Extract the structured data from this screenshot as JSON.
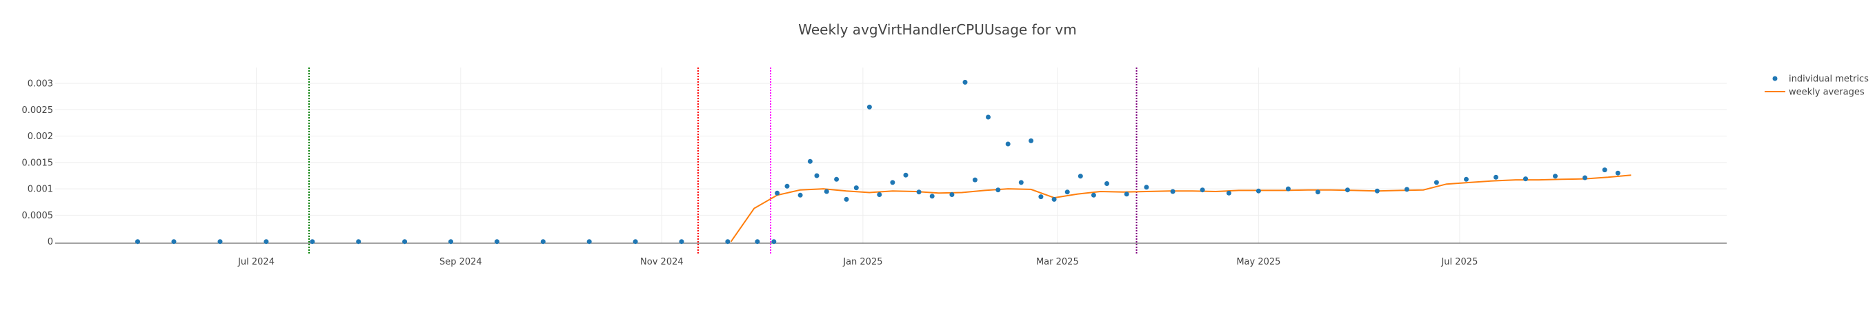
{
  "chart_data": {
    "type": "scatter",
    "title": "Weekly avgVirtHandlerCPUUsage for vm",
    "xlabel": "",
    "ylabel": "",
    "x_axis": {
      "type": "date",
      "range": [
        "2024-05-01",
        "2025-09-20"
      ],
      "ticks": [
        {
          "date": "2024-07-01",
          "label": "Jul 2024"
        },
        {
          "date": "2024-09-01",
          "label": "Sep 2024"
        },
        {
          "date": "2024-11-01",
          "label": "Nov 2024"
        },
        {
          "date": "2025-01-01",
          "label": "Jan 2025"
        },
        {
          "date": "2025-03-01",
          "label": "Mar 2025"
        },
        {
          "date": "2025-05-01",
          "label": "May 2025"
        },
        {
          "date": "2025-07-01",
          "label": "Jul 2025"
        }
      ]
    },
    "y_axis": {
      "range": [
        -3e-05,
        0.0033
      ],
      "ticks": [
        {
          "value": 0,
          "label": "0"
        },
        {
          "value": 0.0005,
          "label": "0.0005"
        },
        {
          "value": 0.001,
          "label": "0.001"
        },
        {
          "value": 0.0015,
          "label": "0.0015"
        },
        {
          "value": 0.002,
          "label": "0.002"
        },
        {
          "value": 0.0025,
          "label": "0.0025"
        },
        {
          "value": 0.003,
          "label": "0.003"
        }
      ]
    },
    "grid": true,
    "legend_placement": "top-right",
    "vertical_markers": [
      {
        "date": "2024-07-17",
        "color": "#008000",
        "style": "dotted"
      },
      {
        "date": "2024-11-12",
        "color": "#ff0000",
        "style": "dotted"
      },
      {
        "date": "2024-12-04",
        "color": "#ff00ff",
        "style": "dotted"
      },
      {
        "date": "2025-03-25",
        "color": "#800080",
        "style": "dotted"
      }
    ],
    "series": [
      {
        "name": "individual metrics",
        "kind": "markers",
        "color": "#1f77b4",
        "points": [
          {
            "x": "2024-05-26",
            "y": 0.0
          },
          {
            "x": "2024-06-06",
            "y": 0.0
          },
          {
            "x": "2024-06-20",
            "y": 0.0
          },
          {
            "x": "2024-07-04",
            "y": 0.0
          },
          {
            "x": "2024-07-18",
            "y": 0.0
          },
          {
            "x": "2024-08-01",
            "y": 0.0
          },
          {
            "x": "2024-08-15",
            "y": 0.0
          },
          {
            "x": "2024-08-29",
            "y": 0.0
          },
          {
            "x": "2024-09-12",
            "y": 0.0
          },
          {
            "x": "2024-09-26",
            "y": 0.0
          },
          {
            "x": "2024-10-10",
            "y": 0.0
          },
          {
            "x": "2024-10-24",
            "y": 0.0
          },
          {
            "x": "2024-11-07",
            "y": 0.0
          },
          {
            "x": "2024-11-21",
            "y": 0.0
          },
          {
            "x": "2024-11-30",
            "y": 0.0
          },
          {
            "x": "2024-12-05",
            "y": 0.0
          },
          {
            "x": "2024-12-06",
            "y": 0.00092
          },
          {
            "x": "2024-12-09",
            "y": 0.00105
          },
          {
            "x": "2024-12-13",
            "y": 0.00088
          },
          {
            "x": "2024-12-16",
            "y": 0.00152
          },
          {
            "x": "2024-12-18",
            "y": 0.00125
          },
          {
            "x": "2024-12-21",
            "y": 0.00095
          },
          {
            "x": "2024-12-24",
            "y": 0.00118
          },
          {
            "x": "2024-12-27",
            "y": 0.0008
          },
          {
            "x": "2024-12-30",
            "y": 0.00102
          },
          {
            "x": "2025-01-03",
            "y": 0.00255
          },
          {
            "x": "2025-01-06",
            "y": 0.00089
          },
          {
            "x": "2025-01-10",
            "y": 0.00112
          },
          {
            "x": "2025-01-14",
            "y": 0.00126
          },
          {
            "x": "2025-01-18",
            "y": 0.00094
          },
          {
            "x": "2025-01-22",
            "y": 0.00086
          },
          {
            "x": "2025-01-28",
            "y": 0.00089
          },
          {
            "x": "2025-02-01",
            "y": 0.00302
          },
          {
            "x": "2025-02-04",
            "y": 0.00117
          },
          {
            "x": "2025-02-08",
            "y": 0.00236
          },
          {
            "x": "2025-02-11",
            "y": 0.00098
          },
          {
            "x": "2025-02-14",
            "y": 0.00185
          },
          {
            "x": "2025-02-18",
            "y": 0.00112
          },
          {
            "x": "2025-02-21",
            "y": 0.00191
          },
          {
            "x": "2025-02-24",
            "y": 0.00085
          },
          {
            "x": "2025-02-28",
            "y": 0.0008
          },
          {
            "x": "2025-03-04",
            "y": 0.00094
          },
          {
            "x": "2025-03-08",
            "y": 0.00124
          },
          {
            "x": "2025-03-12",
            "y": 0.00088
          },
          {
            "x": "2025-03-16",
            "y": 0.0011
          },
          {
            "x": "2025-03-22",
            "y": 0.0009
          },
          {
            "x": "2025-03-28",
            "y": 0.00103
          },
          {
            "x": "2025-04-05",
            "y": 0.00095
          },
          {
            "x": "2025-04-14",
            "y": 0.00098
          },
          {
            "x": "2025-04-22",
            "y": 0.00092
          },
          {
            "x": "2025-05-01",
            "y": 0.00096
          },
          {
            "x": "2025-05-10",
            "y": 0.001
          },
          {
            "x": "2025-05-19",
            "y": 0.00094
          },
          {
            "x": "2025-05-28",
            "y": 0.00098
          },
          {
            "x": "2025-06-06",
            "y": 0.00096
          },
          {
            "x": "2025-06-15",
            "y": 0.00099
          },
          {
            "x": "2025-06-24",
            "y": 0.00112
          },
          {
            "x": "2025-07-03",
            "y": 0.00118
          },
          {
            "x": "2025-07-12",
            "y": 0.00122
          },
          {
            "x": "2025-07-21",
            "y": 0.00119
          },
          {
            "x": "2025-07-30",
            "y": 0.00124
          },
          {
            "x": "2025-08-08",
            "y": 0.00121
          },
          {
            "x": "2025-08-14",
            "y": 0.00136
          },
          {
            "x": "2025-08-18",
            "y": 0.0013
          }
        ]
      },
      {
        "name": "weekly averages",
        "kind": "line",
        "color": "#ff7f0e",
        "points": [
          {
            "x": "2024-11-22",
            "y": 0.0
          },
          {
            "x": "2024-11-29",
            "y": 0.00063
          },
          {
            "x": "2024-12-06",
            "y": 0.00088
          },
          {
            "x": "2024-12-13",
            "y": 0.00098
          },
          {
            "x": "2024-12-20",
            "y": 0.001
          },
          {
            "x": "2024-12-27",
            "y": 0.00096
          },
          {
            "x": "2025-01-03",
            "y": 0.00093
          },
          {
            "x": "2025-01-10",
            "y": 0.00096
          },
          {
            "x": "2025-01-17",
            "y": 0.00095
          },
          {
            "x": "2025-01-24",
            "y": 0.00092
          },
          {
            "x": "2025-01-31",
            "y": 0.00093
          },
          {
            "x": "2025-02-07",
            "y": 0.00097
          },
          {
            "x": "2025-02-14",
            "y": 0.001
          },
          {
            "x": "2025-02-21",
            "y": 0.00099
          },
          {
            "x": "2025-02-28",
            "y": 0.00083
          },
          {
            "x": "2025-03-07",
            "y": 0.0009
          },
          {
            "x": "2025-03-14",
            "y": 0.00095
          },
          {
            "x": "2025-03-21",
            "y": 0.00094
          },
          {
            "x": "2025-03-28",
            "y": 0.00095
          },
          {
            "x": "2025-04-04",
            "y": 0.00096
          },
          {
            "x": "2025-04-11",
            "y": 0.00096
          },
          {
            "x": "2025-04-18",
            "y": 0.00095
          },
          {
            "x": "2025-04-25",
            "y": 0.00097
          },
          {
            "x": "2025-05-02",
            "y": 0.00097
          },
          {
            "x": "2025-05-09",
            "y": 0.00097
          },
          {
            "x": "2025-05-16",
            "y": 0.00098
          },
          {
            "x": "2025-05-23",
            "y": 0.00098
          },
          {
            "x": "2025-05-30",
            "y": 0.00097
          },
          {
            "x": "2025-06-06",
            "y": 0.00096
          },
          {
            "x": "2025-06-13",
            "y": 0.00097
          },
          {
            "x": "2025-06-20",
            "y": 0.00098
          },
          {
            "x": "2025-06-27",
            "y": 0.00109
          },
          {
            "x": "2025-07-04",
            "y": 0.00112
          },
          {
            "x": "2025-07-11",
            "y": 0.00115
          },
          {
            "x": "2025-07-18",
            "y": 0.00117
          },
          {
            "x": "2025-07-25",
            "y": 0.00117
          },
          {
            "x": "2025-08-01",
            "y": 0.00118
          },
          {
            "x": "2025-08-08",
            "y": 0.00119
          },
          {
            "x": "2025-08-15",
            "y": 0.00122
          },
          {
            "x": "2025-08-22",
            "y": 0.00126
          }
        ]
      }
    ]
  }
}
